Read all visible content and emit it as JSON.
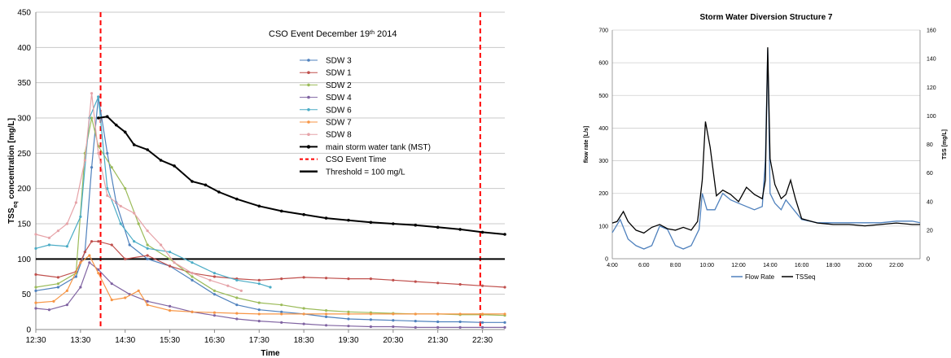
{
  "chart_data": [
    {
      "type": "line",
      "title": "CSO Event December 19",
      "title_sup": "th",
      "title_tail": " 2014",
      "ylabel": "TSS",
      "ylabel_sub": "eq",
      "ylabel_tail": " concentration [mg/L]",
      "xlabel": "Time",
      "ylim": [
        0,
        450
      ],
      "yticks": [
        "0",
        "50",
        "100",
        "150",
        "200",
        "250",
        "300",
        "350",
        "400",
        "450"
      ],
      "xticks": [
        "12:30",
        "13:30",
        "14:30",
        "15:30",
        "16:30",
        "17:30",
        "18:30",
        "19:30",
        "20:30",
        "21:30",
        "22:30"
      ],
      "xlim_hours": [
        12.5,
        23.0
      ],
      "grid": true,
      "legend_position": "top-right",
      "series": [
        {
          "name": "SDW 3",
          "color": "#4F81BD",
          "marker": true,
          "x": [
            12.5,
            13.0,
            13.4,
            13.6,
            13.75,
            13.9,
            14.1,
            14.3,
            14.6,
            15.0,
            15.5,
            16.0,
            16.5,
            17.0,
            17.5,
            18.0,
            18.5,
            19.0,
            19.5,
            20.0,
            20.5,
            21.0,
            21.5,
            22.0,
            22.5,
            23.0
          ],
          "y": [
            55,
            60,
            75,
            110,
            230,
            330,
            250,
            180,
            120,
            100,
            90,
            70,
            50,
            35,
            28,
            25,
            22,
            18,
            15,
            14,
            13,
            12,
            11,
            11,
            10,
            10
          ]
        },
        {
          "name": "SDW 1",
          "color": "#C0504D",
          "marker": true,
          "x": [
            12.5,
            13.0,
            13.4,
            13.6,
            13.75,
            13.9,
            14.2,
            14.5,
            15.0,
            15.5,
            16.0,
            16.5,
            17.0,
            17.5,
            18.0,
            18.5,
            19.0,
            19.5,
            20.0,
            20.5,
            21.0,
            21.5,
            22.0,
            22.5,
            23.0
          ],
          "y": [
            78,
            74,
            82,
            110,
            125,
            125,
            120,
            100,
            105,
            90,
            80,
            75,
            72,
            70,
            72,
            74,
            73,
            72,
            72,
            70,
            68,
            66,
            64,
            62,
            60
          ]
        },
        {
          "name": "SDW 2",
          "color": "#9BBB59",
          "marker": true,
          "x": [
            12.5,
            13.0,
            13.4,
            13.6,
            13.75,
            13.9,
            14.2,
            14.5,
            14.8,
            15.0,
            15.5,
            16.0,
            16.5,
            17.0,
            17.5,
            18.0,
            18.5,
            19.0,
            19.5,
            20.0,
            20.5,
            21.0,
            21.5,
            22.0,
            22.5,
            23.0
          ],
          "y": [
            60,
            65,
            80,
            250,
            300,
            260,
            230,
            200,
            150,
            120,
            100,
            75,
            55,
            45,
            38,
            35,
            30,
            27,
            25,
            24,
            23,
            22,
            22,
            21,
            21,
            20
          ]
        },
        {
          "name": "SDW 4",
          "color": "#8064A2",
          "marker": true,
          "x": [
            12.5,
            12.8,
            13.2,
            13.5,
            13.7,
            13.9,
            14.2,
            14.6,
            15.0,
            15.5,
            16.0,
            16.5,
            17.0,
            17.5,
            18.0,
            18.5,
            19.0,
            19.5,
            20.0,
            20.5,
            21.0,
            21.5,
            22.0,
            22.5,
            23.0
          ],
          "y": [
            30,
            28,
            35,
            60,
            95,
            85,
            65,
            50,
            40,
            33,
            25,
            20,
            15,
            12,
            10,
            8,
            6,
            5,
            4,
            4,
            3,
            3,
            3,
            3,
            3
          ]
        },
        {
          "name": "SDW 6",
          "color": "#4BACC6",
          "marker": true,
          "x": [
            12.5,
            12.8,
            13.2,
            13.5,
            13.7,
            13.9,
            14.1,
            14.4,
            14.7,
            15.0,
            15.5,
            16.0,
            16.5,
            17.0,
            17.5,
            17.75
          ],
          "y": [
            115,
            120,
            118,
            160,
            300,
            330,
            200,
            150,
            125,
            115,
            110,
            95,
            80,
            70,
            65,
            60
          ]
        },
        {
          "name": "SDW 7",
          "color": "#F79646",
          "marker": true,
          "x": [
            12.5,
            12.9,
            13.2,
            13.5,
            13.7,
            13.9,
            14.2,
            14.5,
            14.8,
            15.0,
            15.5,
            16.0,
            16.5,
            17.0,
            17.5,
            18.0,
            18.5,
            19.0,
            19.5,
            20.0,
            20.5,
            21.0,
            21.5,
            22.0,
            22.5,
            23.0
          ],
          "y": [
            38,
            40,
            55,
            95,
            105,
            80,
            42,
            45,
            55,
            35,
            27,
            25,
            24,
            23,
            22,
            22,
            22,
            22,
            22,
            22,
            22,
            22,
            22,
            22,
            22,
            22
          ]
        },
        {
          "name": "SDW 8",
          "color": "#E6A3A8",
          "marker": true,
          "x": [
            12.5,
            12.8,
            13.0,
            13.2,
            13.4,
            13.6,
            13.75,
            13.9,
            14.1,
            14.4,
            14.7,
            15.0,
            15.3,
            15.6,
            16.0,
            16.4,
            16.8,
            17.1
          ],
          "y": [
            135,
            130,
            140,
            150,
            180,
            240,
            335,
            250,
            190,
            175,
            165,
            140,
            120,
            95,
            80,
            70,
            62,
            55
          ]
        },
        {
          "name": "main storm water tank (MST)",
          "color": "#000000",
          "marker": true,
          "x": [
            13.9,
            14.1,
            14.3,
            14.5,
            14.7,
            15.0,
            15.3,
            15.6,
            16.0,
            16.3,
            16.6,
            17.0,
            17.5,
            18.0,
            18.5,
            19.0,
            19.5,
            20.0,
            20.5,
            21.0,
            21.5,
            22.0,
            22.5,
            23.0
          ],
          "y": [
            300,
            302,
            290,
            280,
            262,
            255,
            240,
            232,
            210,
            205,
            195,
            185,
            175,
            168,
            163,
            158,
            155,
            152,
            150,
            148,
            145,
            142,
            138,
            135
          ]
        },
        {
          "name": "CSO Event Time",
          "color": "#FF0000",
          "dashed": true,
          "x": [
            13.95,
            22.45
          ]
        },
        {
          "name": "Threshold = 100 mg/L",
          "color": "#000000",
          "value": 100
        }
      ]
    },
    {
      "type": "line",
      "title": "Storm Water Diversion Structure 7",
      "ylabel": "flow rate [L/s]",
      "y2label": "TSS [mg/L]",
      "ylim": [
        0,
        700
      ],
      "y2lim": [
        0,
        160
      ],
      "yticks": [
        "0",
        "100",
        "200",
        "300",
        "400",
        "500",
        "600",
        "700"
      ],
      "y2ticks": [
        "0",
        "20",
        "40",
        "60",
        "80",
        "100",
        "120",
        "140",
        "160"
      ],
      "xticks": [
        "4:00",
        "6:00",
        "8:00",
        "10:00",
        "12:00",
        "14:00",
        "16:00",
        "18:00",
        "20:00",
        "22:00"
      ],
      "xlim_hours": [
        4.0,
        23.5
      ],
      "grid": true,
      "legend_position": "bottom",
      "series": [
        {
          "name": "Flow Rate",
          "color": "#4F81BD",
          "x": [
            4.0,
            4.5,
            5.0,
            5.5,
            6.0,
            6.5,
            7.0,
            7.5,
            8.0,
            8.5,
            9.0,
            9.5,
            9.7,
            10.0,
            10.5,
            11.0,
            11.5,
            12.0,
            12.5,
            13.0,
            13.5,
            13.7,
            13.85,
            14.0,
            14.3,
            14.7,
            15.0,
            15.5,
            16.0,
            17.0,
            18.0,
            19.0,
            20.0,
            21.0,
            22.0,
            23.0,
            23.5
          ],
          "y": [
            80,
            120,
            60,
            40,
            30,
            40,
            100,
            90,
            40,
            30,
            40,
            90,
            200,
            150,
            150,
            200,
            180,
            170,
            160,
            150,
            160,
            300,
            640,
            200,
            170,
            150,
            180,
            150,
            120,
            110,
            110,
            110,
            110,
            110,
            115,
            115,
            110
          ]
        },
        {
          "name": "TSSeq",
          "color": "#000000",
          "x": [
            4.0,
            4.3,
            4.7,
            5.0,
            5.5,
            6.0,
            6.5,
            7.0,
            7.5,
            8.0,
            8.5,
            9.0,
            9.4,
            9.7,
            9.9,
            10.2,
            10.6,
            11.0,
            11.5,
            12.0,
            12.5,
            13.0,
            13.5,
            13.7,
            13.85,
            14.0,
            14.3,
            14.7,
            15.0,
            15.3,
            15.6,
            16.0,
            17.0,
            18.0,
            19.0,
            20.0,
            21.0,
            22.0,
            23.0,
            23.5
          ],
          "y": [
            25,
            26,
            33,
            26,
            20,
            18,
            22,
            24,
            21,
            20,
            22,
            20,
            26,
            55,
            96,
            78,
            44,
            48,
            45,
            40,
            50,
            45,
            42,
            55,
            148,
            70,
            52,
            42,
            45,
            55,
            42,
            28,
            25,
            24,
            24,
            23,
            24,
            25,
            24,
            24
          ]
        }
      ]
    }
  ]
}
